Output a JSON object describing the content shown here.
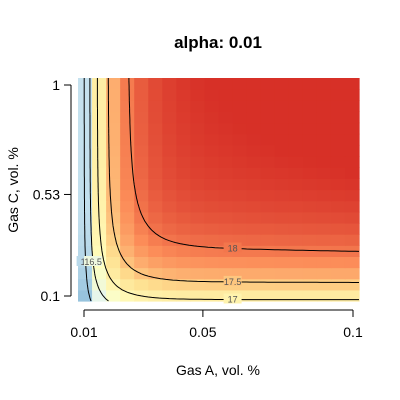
{
  "chart_data": {
    "type": "heatmap",
    "title": "alpha: 0.01",
    "xlabel": "Gas A, vol. %",
    "ylabel": "Gas C, vol. %",
    "x_ticks": [
      {
        "value": 0.01,
        "label": "0.01"
      },
      {
        "value": 0.05,
        "label": "0.05"
      },
      {
        "value": 0.1,
        "label": "0.1"
      }
    ],
    "y_ticks": [
      {
        "value": 0.1,
        "label": "0.1"
      },
      {
        "value": 0.53,
        "label": "0.53"
      },
      {
        "value": 1,
        "label": "1"
      }
    ],
    "xlim": [
      0.01,
      0.1
    ],
    "ylim": [
      0.1,
      1
    ],
    "colormap": [
      "#4575b4",
      "#91bfdb",
      "#e0f3f8",
      "#ffffbf",
      "#fee090",
      "#fc8d59",
      "#d73027"
    ],
    "value_range": [
      15.2,
      18.4
    ],
    "contours": [
      {
        "level": 16,
        "label": "16"
      },
      {
        "level": 16.5,
        "label": "16.5"
      },
      {
        "level": 17,
        "label": "17"
      },
      {
        "level": 17.5,
        "label": "17.5"
      },
      {
        "level": 18,
        "label": "18"
      }
    ]
  }
}
